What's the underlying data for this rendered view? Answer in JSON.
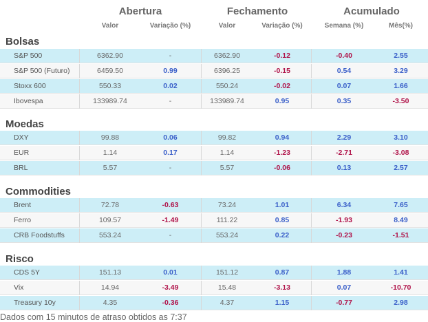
{
  "headers": {
    "groups": [
      "Abertura",
      "Fechamento",
      "Acumulado"
    ],
    "cols": [
      "Valor",
      "Variação (%)",
      "Valor",
      "Variação (%)",
      "Semana (%)",
      "Mês(%)"
    ]
  },
  "sections": [
    {
      "title": "Bolsas",
      "rows": [
        {
          "name": "S&P 500",
          "open": "6362.90",
          "open_var": "-",
          "close": "6362.90",
          "close_var": "-0.12",
          "week": "-0.40",
          "month": "2.55"
        },
        {
          "name": "S&P 500 (Futuro)",
          "open": "6459.50",
          "open_var": "0.99",
          "close": "6396.25",
          "close_var": "-0.15",
          "week": "0.54",
          "month": "3.29"
        },
        {
          "name": "Stoxx 600",
          "open": "550.33",
          "open_var": "0.02",
          "close": "550.24",
          "close_var": "-0.02",
          "week": "0.07",
          "month": "1.66"
        },
        {
          "name": "Ibovespa",
          "open": "133989.74",
          "open_var": "-",
          "close": "133989.74",
          "close_var": "0.95",
          "week": "0.35",
          "month": "-3.50"
        }
      ]
    },
    {
      "title": "Moedas",
      "rows": [
        {
          "name": "DXY",
          "open": "99.88",
          "open_var": "0.06",
          "close": "99.82",
          "close_var": "0.94",
          "week": "2.29",
          "month": "3.10"
        },
        {
          "name": "EUR",
          "open": "1.14",
          "open_var": "0.17",
          "close": "1.14",
          "close_var": "-1.23",
          "week": "-2.71",
          "month": "-3.08"
        },
        {
          "name": "BRL",
          "open": "5.57",
          "open_var": "-",
          "close": "5.57",
          "close_var": "-0.06",
          "week": "0.13",
          "month": "2.57"
        }
      ]
    },
    {
      "title": "Commodities",
      "rows": [
        {
          "name": "Brent",
          "open": "72.78",
          "open_var": "-0.63",
          "close": "73.24",
          "close_var": "1.01",
          "week": "6.34",
          "month": "7.65"
        },
        {
          "name": "Ferro",
          "open": "109.57",
          "open_var": "-1.49",
          "close": "111.22",
          "close_var": "0.85",
          "week": "-1.93",
          "month": "8.49"
        },
        {
          "name": "CRB Foodstuffs",
          "open": "553.24",
          "open_var": "-",
          "close": "553.24",
          "close_var": "0.22",
          "week": "-0.23",
          "month": "-1.51"
        }
      ]
    },
    {
      "title": "Risco",
      "rows": [
        {
          "name": "CDS 5Y",
          "open": "151.13",
          "open_var": "0.01",
          "close": "151.12",
          "close_var": "0.87",
          "week": "1.88",
          "month": "1.41"
        },
        {
          "name": "Vix",
          "open": "14.94",
          "open_var": "-3.49",
          "close": "15.48",
          "close_var": "-3.13",
          "week": "0.07",
          "month": "-10.70"
        },
        {
          "name": "Treasury 10y",
          "open": "4.35",
          "open_var": "-0.36",
          "close": "4.37",
          "close_var": "1.15",
          "week": "-0.77",
          "month": "2.98"
        }
      ]
    }
  ],
  "footer": "Dados com 15 minutos de atraso obtidos as 7:37",
  "colors": {
    "positive": "#3a5fc9",
    "negative": "#b0144a",
    "row_highlight": "#cdeef7"
  }
}
